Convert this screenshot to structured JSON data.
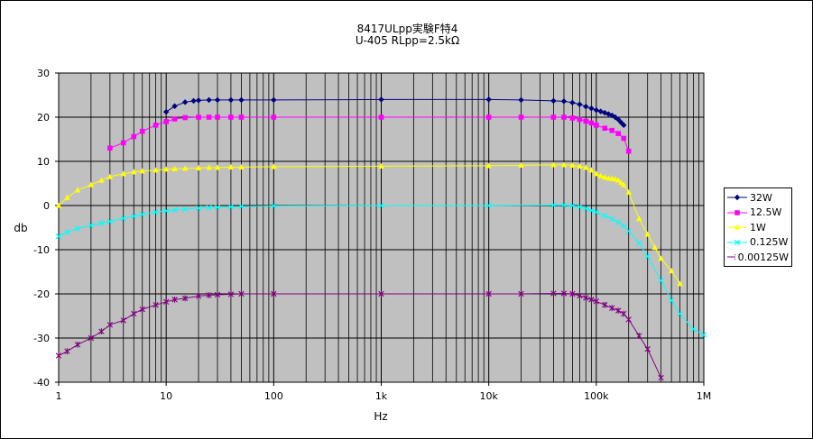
{
  "chart_data": {
    "type": "line",
    "title": "8417ULpp実験F特4",
    "subtitle": "U-405 RLpp=2.5kΩ",
    "xlabel": "Hz",
    "ylabel": "db",
    "x_scale": "log",
    "xlim": [
      1,
      1000000
    ],
    "ylim": [
      -40,
      30
    ],
    "x_ticks": [
      1,
      10,
      100,
      1000,
      10000,
      100000,
      1000000
    ],
    "x_tick_labels": [
      "1",
      "10",
      "100",
      "1k",
      "10k",
      "100k",
      "1M"
    ],
    "y_ticks": [
      30,
      20,
      10,
      0,
      -10,
      -20,
      -30,
      -40
    ],
    "y_tick_labels": [
      "30",
      "20",
      "10",
      "0",
      "-10",
      "-20",
      "-30",
      "-40"
    ],
    "grid": true,
    "legend_position": "right",
    "series": [
      {
        "name": "32W",
        "color": "#000080",
        "marker": "diamond",
        "x": [
          10,
          12,
          15,
          18,
          20,
          25,
          30,
          40,
          50,
          100,
          1000,
          10000,
          20000,
          40000,
          50000,
          60000,
          70000,
          80000,
          90000,
          100000,
          110000,
          120000,
          130000,
          140000,
          150000,
          160000,
          170000,
          180000
        ],
        "y": [
          21.2,
          22.5,
          23.4,
          23.7,
          23.8,
          23.9,
          23.9,
          23.9,
          23.9,
          23.9,
          24.0,
          24.0,
          23.9,
          23.7,
          23.6,
          23.3,
          22.9,
          22.4,
          22.0,
          21.6,
          21.3,
          21.0,
          20.7,
          20.4,
          20.0,
          19.5,
          18.8,
          18.2
        ]
      },
      {
        "name": "12.5W",
        "color": "#ff00ff",
        "marker": "square",
        "x": [
          3,
          4,
          5,
          6,
          8,
          10,
          12,
          15,
          20,
          25,
          30,
          40,
          50,
          100,
          1000,
          10000,
          20000,
          40000,
          50000,
          60000,
          70000,
          80000,
          90000,
          100000,
          120000,
          140000,
          160000,
          180000,
          200000
        ],
        "y": [
          13.0,
          14.2,
          15.6,
          16.8,
          18.2,
          19.0,
          19.6,
          19.9,
          20.0,
          20.0,
          20.0,
          20.0,
          20.0,
          20.0,
          20.0,
          20.0,
          20.0,
          20.0,
          20.0,
          19.8,
          19.5,
          19.1,
          18.7,
          18.2,
          17.5,
          17.0,
          16.3,
          15.2,
          12.3
        ]
      },
      {
        "name": "1W",
        "color": "#ffff00",
        "marker": "triangle",
        "x": [
          1,
          1.2,
          1.5,
          2,
          2.5,
          3,
          4,
          5,
          6,
          8,
          10,
          12,
          15,
          20,
          25,
          30,
          40,
          50,
          100,
          1000,
          10000,
          20000,
          40000,
          50000,
          60000,
          70000,
          80000,
          90000,
          100000,
          110000,
          120000,
          130000,
          140000,
          150000,
          160000,
          170000,
          180000,
          200000,
          250000,
          300000,
          350000,
          400000,
          500000,
          600000
        ],
        "y": [
          0,
          1.8,
          3.5,
          4.7,
          5.7,
          6.5,
          7.2,
          7.6,
          7.8,
          8.0,
          8.2,
          8.3,
          8.4,
          8.5,
          8.6,
          8.6,
          8.7,
          8.7,
          8.8,
          8.9,
          9.0,
          9.1,
          9.2,
          9.2,
          9.1,
          8.9,
          8.6,
          8.0,
          7.2,
          6.7,
          6.4,
          6.2,
          6.1,
          6.0,
          5.7,
          5.2,
          4.7,
          3.0,
          -3.0,
          -6.5,
          -9.5,
          -12.0,
          -14.8,
          -17.7
        ]
      },
      {
        "name": "0.125W",
        "color": "#00ffff",
        "marker": "x",
        "x": [
          1,
          1.2,
          1.5,
          2,
          2.5,
          3,
          4,
          5,
          6,
          8,
          10,
          12,
          15,
          20,
          25,
          30,
          40,
          50,
          100,
          1000,
          10000,
          40000,
          50000,
          60000,
          70000,
          80000,
          90000,
          100000,
          120000,
          140000,
          160000,
          180000,
          200000,
          250000,
          300000,
          400000,
          500000,
          600000,
          800000,
          1000000
        ],
        "y": [
          -7.0,
          -6.0,
          -5.2,
          -4.5,
          -4.0,
          -3.6,
          -2.9,
          -2.4,
          -2.0,
          -1.5,
          -1.2,
          -1.0,
          -0.8,
          -0.6,
          -0.5,
          -0.4,
          -0.3,
          -0.2,
          -0.1,
          0.0,
          0.0,
          0.1,
          0.1,
          0.0,
          -0.3,
          -0.7,
          -1.1,
          -1.5,
          -2.3,
          -3.0,
          -3.8,
          -4.6,
          -5.8,
          -8.5,
          -11.5,
          -17.0,
          -21.5,
          -24.5,
          -28.0,
          -29.3
        ]
      },
      {
        "name": "0.00125W",
        "color": "#800080",
        "marker": "star",
        "x": [
          1,
          1.2,
          1.5,
          2,
          2.5,
          3,
          4,
          5,
          6,
          8,
          10,
          12,
          15,
          20,
          25,
          30,
          40,
          50,
          100,
          1000,
          10000,
          20000,
          40000,
          50000,
          60000,
          70000,
          80000,
          90000,
          100000,
          120000,
          140000,
          160000,
          180000,
          200000,
          250000,
          300000,
          400000
        ],
        "y": [
          -34.0,
          -33.0,
          -31.5,
          -30.0,
          -28.5,
          -27.0,
          -26.0,
          -24.5,
          -23.5,
          -22.5,
          -21.8,
          -21.3,
          -21.0,
          -20.5,
          -20.3,
          -20.2,
          -20.1,
          -20.0,
          -20.0,
          -20.0,
          -20.0,
          -20.0,
          -19.9,
          -19.9,
          -20.0,
          -20.4,
          -20.9,
          -21.3,
          -21.7,
          -22.5,
          -23.2,
          -23.8,
          -24.5,
          -25.8,
          -29.5,
          -32.5,
          -39.0
        ]
      }
    ]
  }
}
